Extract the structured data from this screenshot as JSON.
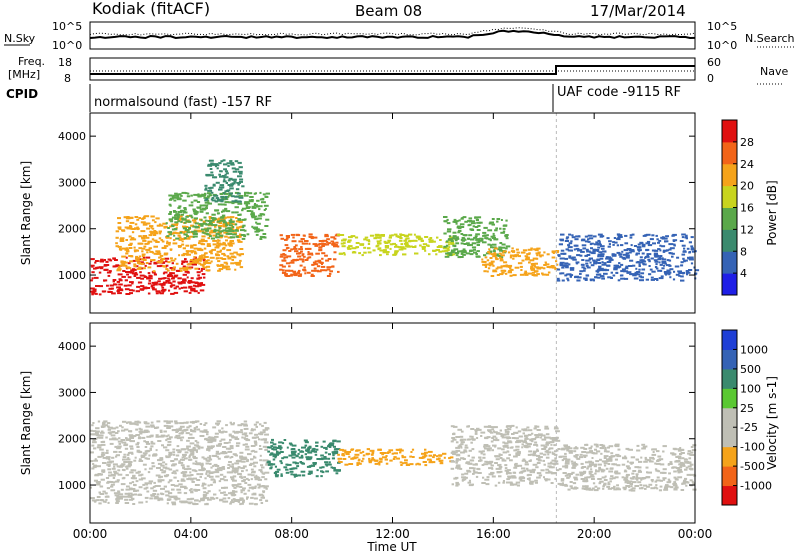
{
  "header": {
    "station": "Kodiak (fitACF)",
    "beam": "Beam 08",
    "date": "17/Mar/2014"
  },
  "status_panels": {
    "nsky_label": "N.Sky",
    "nsearch_label": "N.Search",
    "nsky_ticks": [
      "10^5",
      "10^0"
    ],
    "nsearch_ticks": [
      "10^5",
      "10^0"
    ],
    "freq_label_1": "Freq.",
    "freq_label_2": "[MHz]",
    "freq_ticks": [
      "18",
      "8"
    ],
    "nave_ticks": [
      "60",
      "0"
    ],
    "nave_label": "Nave",
    "cpid_label": "CPID",
    "cpid_segments": [
      {
        "text": "normalsound (fast) -157 RF",
        "start_hour": 0
      },
      {
        "text": "UAF code -9115 RF",
        "start_hour": 18.5
      }
    ]
  },
  "colors": {
    "power_scale": [
      "#1f1fe6",
      "#3563b5",
      "#3a8a6e",
      "#5aa84a",
      "#c8d41e",
      "#f5a31a",
      "#f26418",
      "#e01010"
    ],
    "velocity_scale": [
      "#e01010",
      "#f26418",
      "#f5a31a",
      "#bfbfb5",
      "#bfbfb5",
      "#5ac832",
      "#3a8a6e",
      "#3563b5",
      "#1f3fd6"
    ]
  },
  "chart_data": [
    {
      "type": "heatmap",
      "title": "Power",
      "xlabel": "Time UT",
      "ylabel": "Slant Range [km]",
      "x_ticks": [
        "00:00",
        "04:00",
        "08:00",
        "12:00",
        "16:00",
        "20:00",
        "00:00"
      ],
      "x_range_hours": [
        0,
        24
      ],
      "y_ticks": [
        "1000",
        "2000",
        "3000",
        "4000"
      ],
      "y_range_km": [
        180,
        4500
      ],
      "colorbar_label": "Power [dB]",
      "colorbar_ticks": [
        "4",
        "8",
        "12",
        "16",
        "20",
        "24",
        "28"
      ],
      "colorbar_range": [
        0,
        32
      ],
      "regions": [
        {
          "t0": 0.0,
          "t1": 4.5,
          "r0": 600,
          "r1": 1400,
          "value": 29
        },
        {
          "t0": 1.0,
          "t1": 6.0,
          "r0": 1100,
          "r1": 2300,
          "value": 22
        },
        {
          "t0": 3.0,
          "t1": 7.0,
          "r0": 1800,
          "r1": 2800,
          "value": 14
        },
        {
          "t0": 4.5,
          "t1": 6.0,
          "r0": 2600,
          "r1": 3500,
          "value": 10
        },
        {
          "t0": 7.5,
          "t1": 9.8,
          "r0": 1000,
          "r1": 1900,
          "value": 27
        },
        {
          "t0": 9.8,
          "t1": 14.3,
          "r0": 1450,
          "r1": 1900,
          "value": 18
        },
        {
          "t0": 14.0,
          "t1": 16.5,
          "r0": 1400,
          "r1": 2300,
          "value": 12
        },
        {
          "t0": 15.5,
          "t1": 18.5,
          "r0": 1000,
          "r1": 1600,
          "value": 20
        },
        {
          "t0": 18.5,
          "t1": 24.0,
          "r0": 900,
          "r1": 1900,
          "value": 6
        }
      ]
    },
    {
      "type": "heatmap",
      "title": "Velocity",
      "xlabel": "Time UT",
      "ylabel": "Slant Range [km]",
      "x_ticks": [
        "00:00",
        "04:00",
        "08:00",
        "12:00",
        "16:00",
        "20:00",
        "00:00"
      ],
      "x_range_hours": [
        0,
        24
      ],
      "y_ticks": [
        "1000",
        "2000",
        "3000",
        "4000"
      ],
      "y_range_km": [
        180,
        4500
      ],
      "colorbar_label": "Velocity [m s-1]",
      "colorbar_ticks": [
        "1000",
        "500",
        "100",
        "25",
        "-25",
        "-100",
        "-500",
        "-1000"
      ],
      "regions": [
        {
          "t0": 0.0,
          "t1": 7.0,
          "r0": 600,
          "r1": 2400,
          "value": 0
        },
        {
          "t0": 7.0,
          "t1": 9.8,
          "r0": 1200,
          "r1": 2000,
          "value": 300
        },
        {
          "t0": 9.8,
          "t1": 14.3,
          "r0": 1450,
          "r1": 1800,
          "value": -80
        },
        {
          "t0": 14.3,
          "t1": 18.5,
          "r0": 1000,
          "r1": 2300,
          "value": 0
        },
        {
          "t0": 18.5,
          "t1": 24.0,
          "r0": 900,
          "r1": 1900,
          "value": 0
        }
      ]
    }
  ]
}
